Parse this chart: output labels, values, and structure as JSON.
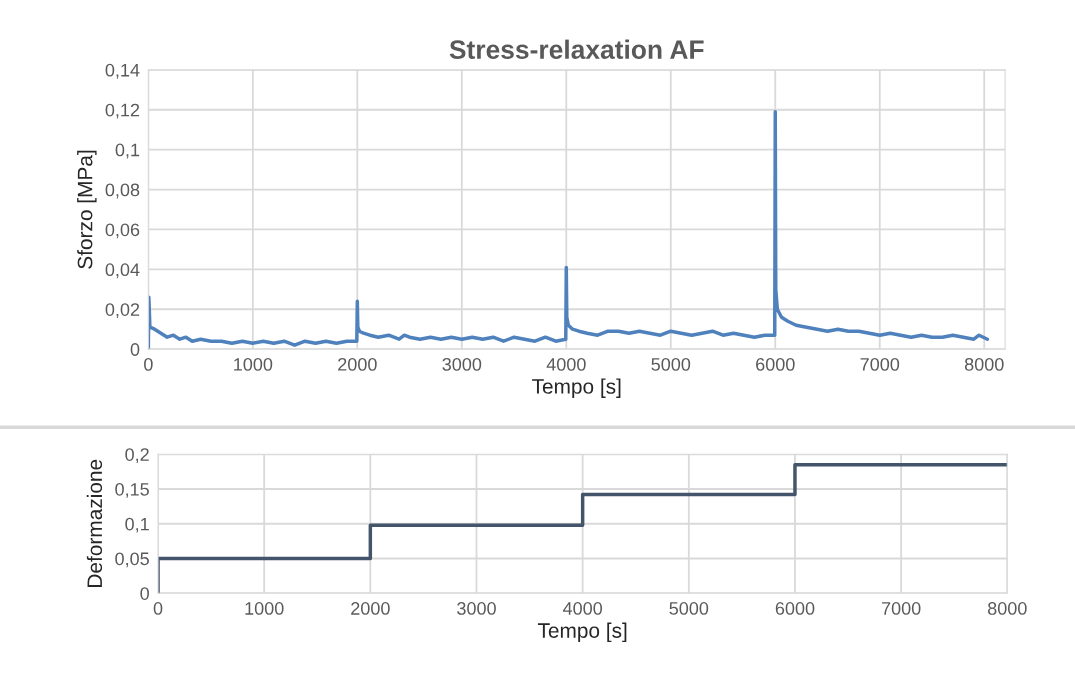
{
  "chart_data": [
    {
      "type": "line",
      "title": "Stress-relaxation AF",
      "xlabel": "Tempo [s]",
      "ylabel": "Sforzo [MPa]",
      "series": [
        {
          "color": "#4f81bd",
          "x": [
            0,
            5,
            15,
            60,
            120,
            180,
            240,
            300,
            360,
            420,
            500,
            600,
            700,
            800,
            900,
            1000,
            1100,
            1200,
            1300,
            1400,
            1500,
            1600,
            1700,
            1800,
            1900,
            1995,
            2000,
            2005,
            2020,
            2060,
            2120,
            2200,
            2300,
            2400,
            2450,
            2500,
            2600,
            2700,
            2800,
            2900,
            3000,
            3100,
            3200,
            3300,
            3400,
            3500,
            3600,
            3700,
            3800,
            3900,
            3995,
            4000,
            4005,
            4020,
            4060,
            4120,
            4200,
            4300,
            4400,
            4500,
            4600,
            4700,
            4800,
            4900,
            5000,
            5100,
            5200,
            5300,
            5400,
            5500,
            5600,
            5700,
            5800,
            5900,
            5995,
            6000,
            6005,
            6020,
            6060,
            6120,
            6200,
            6300,
            6400,
            6500,
            6600,
            6700,
            6800,
            6900,
            7000,
            7100,
            7200,
            7300,
            7400,
            7500,
            7600,
            7700,
            7800,
            7900,
            7950,
            8030
          ],
          "values": [
            0,
            0.026,
            0.011,
            0.01,
            0.008,
            0.006,
            0.007,
            0.005,
            0.006,
            0.004,
            0.005,
            0.004,
            0.004,
            0.003,
            0.004,
            0.003,
            0.004,
            0.003,
            0.004,
            0.002,
            0.004,
            0.003,
            0.004,
            0.003,
            0.004,
            0.004,
            0.024,
            0.011,
            0.009,
            0.008,
            0.007,
            0.006,
            0.007,
            0.005,
            0.007,
            0.006,
            0.005,
            0.006,
            0.005,
            0.006,
            0.005,
            0.006,
            0.005,
            0.006,
            0.004,
            0.006,
            0.005,
            0.004,
            0.006,
            0.004,
            0.005,
            0.041,
            0.016,
            0.012,
            0.01,
            0.009,
            0.008,
            0.007,
            0.009,
            0.009,
            0.008,
            0.009,
            0.008,
            0.007,
            0.009,
            0.008,
            0.007,
            0.008,
            0.009,
            0.007,
            0.008,
            0.007,
            0.006,
            0.007,
            0.007,
            0.119,
            0.03,
            0.02,
            0.016,
            0.014,
            0.012,
            0.011,
            0.01,
            0.009,
            0.01,
            0.009,
            0.009,
            0.008,
            0.007,
            0.008,
            0.007,
            0.006,
            0.007,
            0.006,
            0.006,
            0.007,
            0.006,
            0.005,
            0.007,
            0.005
          ]
        }
      ],
      "xlim": [
        0,
        8200
      ],
      "xticks": [
        0,
        1000,
        2000,
        3000,
        4000,
        5000,
        6000,
        7000,
        8000
      ],
      "ylim": [
        0,
        0.14
      ],
      "yticks": [
        0,
        {
          "value": 0.02,
          "label": "0,02"
        },
        {
          "value": 0.04,
          "label": "0,04"
        },
        {
          "value": 0.06,
          "label": "0,06"
        },
        {
          "value": 0.08,
          "label": "0,08"
        },
        {
          "value": 0.1,
          "label": "0,1"
        },
        {
          "value": 0.12,
          "label": "0,12"
        },
        {
          "value": 0.14,
          "label": "0,14"
        }
      ],
      "grid": true
    },
    {
      "type": "step",
      "xlabel": "Tempo [s]",
      "ylabel": "Deformazione",
      "series": [
        {
          "color": "#44546a",
          "x": [
            0,
            0,
            2000,
            4000,
            6000,
            8000
          ],
          "values": [
            0,
            0.05,
            0.098,
            0.142,
            0.185,
            0.185
          ]
        }
      ],
      "xlim": [
        0,
        8000
      ],
      "xticks": [
        0,
        1000,
        2000,
        3000,
        4000,
        5000,
        6000,
        7000,
        8000
      ],
      "ylim": [
        0,
        0.2
      ],
      "yticks": [
        0,
        {
          "value": 0.05,
          "label": "0,05"
        },
        {
          "value": 0.1,
          "label": "0,1"
        },
        {
          "value": 0.15,
          "label": "0,15"
        },
        {
          "value": 0.2,
          "label": "0,2"
        }
      ],
      "grid": true
    }
  ]
}
